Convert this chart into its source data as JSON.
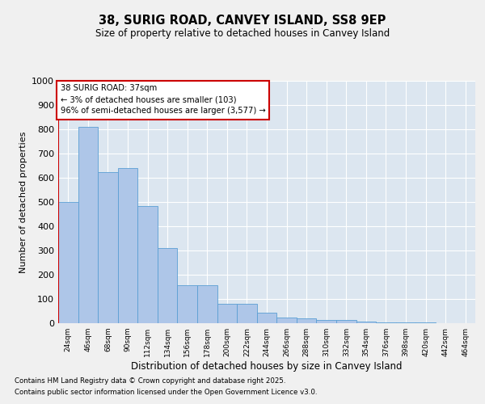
{
  "title": "38, SURIG ROAD, CANVEY ISLAND, SS8 9EP",
  "subtitle": "Size of property relative to detached houses in Canvey Island",
  "xlabel": "Distribution of detached houses by size in Canvey Island",
  "ylabel": "Number of detached properties",
  "annotation_lines": [
    "38 SURIG ROAD: 37sqm",
    "← 3% of detached houses are smaller (103)",
    "96% of semi-detached houses are larger (3,577) →"
  ],
  "bar_values": [
    500,
    810,
    625,
    640,
    485,
    310,
    158,
    158,
    80,
    80,
    42,
    22,
    20,
    15,
    12,
    8,
    5,
    3,
    2,
    1,
    1
  ],
  "bar_color": "#aec6e8",
  "bar_edge_color": "#5a9fd4",
  "categories": [
    "24sqm",
    "46sqm",
    "68sqm",
    "90sqm",
    "112sqm",
    "134sqm",
    "156sqm",
    "178sqm",
    "200sqm",
    "222sqm",
    "244sqm",
    "266sqm",
    "288sqm",
    "310sqm",
    "332sqm",
    "354sqm",
    "376sqm",
    "398sqm",
    "420sqm",
    "442sqm",
    "464sqm"
  ],
  "vline_color": "#cc0000",
  "ylim": [
    0,
    1000
  ],
  "yticks": [
    0,
    100,
    200,
    300,
    400,
    500,
    600,
    700,
    800,
    900,
    1000
  ],
  "annotation_box_color": "#ffffff",
  "annotation_box_edge": "#cc0000",
  "bg_color": "#dce6f0",
  "fig_bg_color": "#f0f0f0",
  "footnote1": "Contains HM Land Registry data © Crown copyright and database right 2025.",
  "footnote2": "Contains public sector information licensed under the Open Government Licence v3.0."
}
